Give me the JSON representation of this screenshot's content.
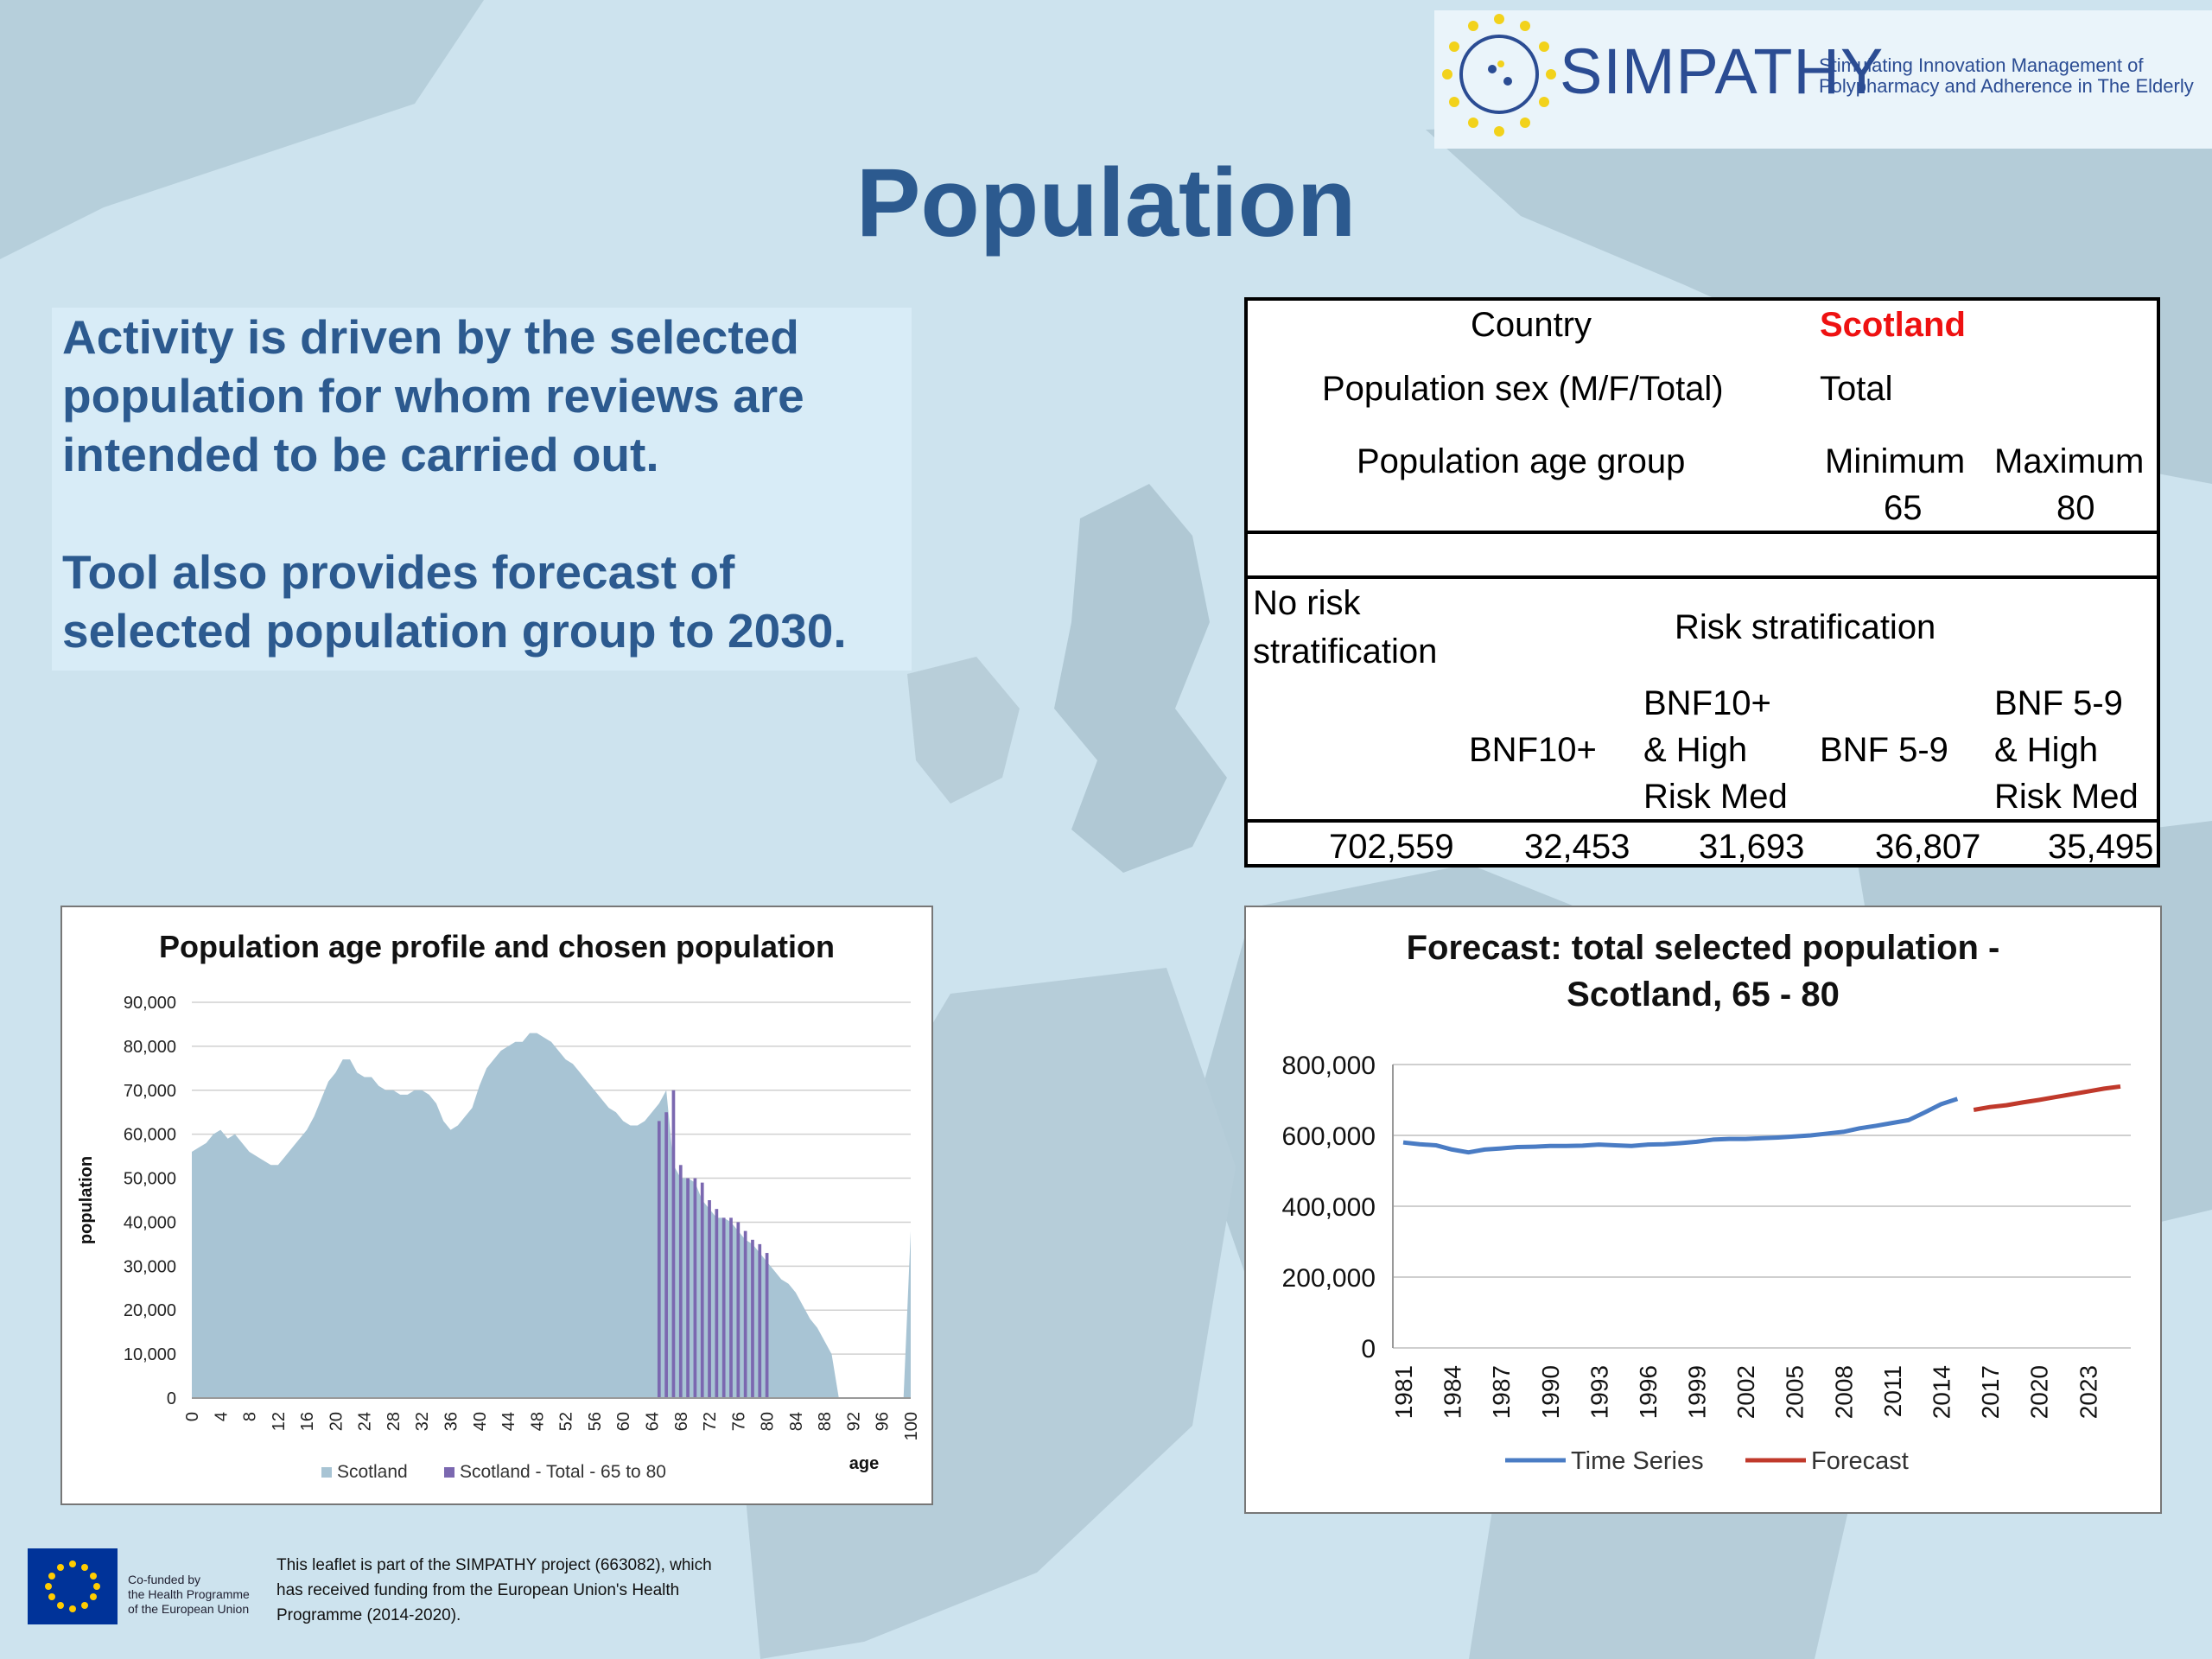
{
  "header": {
    "logo_name": "SIMPATHY",
    "logo_tagline": "Stimulating Innovation Management of Polypharmacy and Adherence in The Elderly"
  },
  "page_title": "Population",
  "intro": {
    "line1": "Activity is driven by the selected population for whom reviews are intended to be carried out.",
    "line2": "Tool also provides forecast of selected population group to 2030."
  },
  "selection_table": {
    "country_label": "Country",
    "country_value": "Scotland",
    "country_value_color": "#ee1111",
    "sex_label": "Population sex (M/F/Total)",
    "sex_value": "Total",
    "age_label": "Population age group",
    "min_label": "Minimum",
    "max_label": "Maximum",
    "min_value": "65",
    "max_value": "80",
    "no_risk_label_1": "No risk",
    "no_risk_label_2": "stratification",
    "risk_label": "Risk stratification",
    "col_bnf10": "BNF10+",
    "col_bnf10_high_1": "BNF10+",
    "col_bnf10_high_2": "& High",
    "col_bnf10_high_3": "Risk Med",
    "col_bnf59": "BNF 5-9",
    "col_bnf59_high_1": "BNF 5-9",
    "col_bnf59_high_2": "& High",
    "col_bnf59_high_3": "Risk Med",
    "values": [
      "702,559",
      "32,453",
      "31,693",
      "36,807",
      "35,495"
    ]
  },
  "chart_data": [
    {
      "type": "area",
      "title": "Population age profile and chosen population",
      "xlabel": "age",
      "ylabel": "population",
      "ylim": [
        0,
        90000
      ],
      "yticks": [
        "0",
        "10,000",
        "20,000",
        "30,000",
        "40,000",
        "50,000",
        "60,000",
        "70,000",
        "80,000",
        "90,000"
      ],
      "xticks": [
        "0",
        "4",
        "8",
        "12",
        "16",
        "20",
        "24",
        "28",
        "32",
        "36",
        "40",
        "44",
        "48",
        "52",
        "56",
        "60",
        "64",
        "68",
        "72",
        "76",
        "80",
        "84",
        "88",
        "92",
        "96",
        "100"
      ],
      "grid": true,
      "legend_position": "bottom",
      "series": [
        {
          "name": "Scotland",
          "color": "#a8c4d4",
          "x": [
            0,
            1,
            2,
            3,
            4,
            5,
            6,
            7,
            8,
            9,
            10,
            11,
            12,
            13,
            14,
            15,
            16,
            17,
            18,
            19,
            20,
            21,
            22,
            23,
            24,
            25,
            26,
            27,
            28,
            29,
            30,
            31,
            32,
            33,
            34,
            35,
            36,
            37,
            38,
            39,
            40,
            41,
            42,
            43,
            44,
            45,
            46,
            47,
            48,
            49,
            50,
            51,
            52,
            53,
            54,
            55,
            56,
            57,
            58,
            59,
            60,
            61,
            62,
            63,
            64,
            65,
            66,
            67,
            68,
            69,
            70,
            71,
            72,
            73,
            74,
            75,
            76,
            77,
            78,
            79,
            80,
            81,
            82,
            83,
            84,
            85,
            86,
            87,
            88,
            89,
            90,
            99,
            100
          ],
          "values": [
            56000,
            57000,
            58000,
            60000,
            61000,
            59000,
            60000,
            58000,
            56000,
            55000,
            54000,
            53000,
            53000,
            55000,
            57000,
            59000,
            61000,
            64000,
            68000,
            72000,
            74000,
            77000,
            77000,
            74000,
            73000,
            73000,
            71000,
            70000,
            70000,
            69000,
            69000,
            70000,
            70000,
            69000,
            67000,
            63000,
            61000,
            62000,
            64000,
            66000,
            71000,
            75000,
            77000,
            79000,
            80000,
            81000,
            81000,
            83000,
            83000,
            82000,
            81000,
            79000,
            77000,
            76000,
            74000,
            72000,
            70000,
            68000,
            66000,
            65000,
            63000,
            62000,
            62000,
            63000,
            65000,
            67000,
            70000,
            53000,
            50000,
            50000,
            49000,
            45000,
            43000,
            41000,
            41000,
            40000,
            38000,
            36000,
            35000,
            33000,
            31000,
            29000,
            27000,
            26000,
            24000,
            21000,
            18000,
            16000,
            13000,
            10000,
            0,
            0,
            38000
          ]
        },
        {
          "name": "Scotland - Total - 65 to 80",
          "color": "#7b68b0",
          "x": [
            65,
            66,
            67,
            68,
            69,
            70,
            71,
            72,
            73,
            74,
            75,
            76,
            77,
            78,
            79,
            80
          ],
          "values": [
            63000,
            65000,
            70000,
            53000,
            50000,
            50000,
            49000,
            45000,
            43000,
            41000,
            41000,
            40000,
            38000,
            36000,
            35000,
            33000
          ]
        }
      ]
    },
    {
      "type": "line",
      "title": "Forecast: total selected population - Scotland, 65 - 80",
      "ylim": [
        0,
        800000
      ],
      "yticks": [
        "0",
        "200,000",
        "400,000",
        "600,000",
        "800,000"
      ],
      "xticks": [
        "1981",
        "1984",
        "1987",
        "1990",
        "1993",
        "1996",
        "1999",
        "2002",
        "2005",
        "2008",
        "2011",
        "2014",
        "2017",
        "2020",
        "2023"
      ],
      "grid": true,
      "legend_position": "bottom",
      "series": [
        {
          "name": "Time Series",
          "color": "#4a7cc4",
          "x": [
            1981,
            1982,
            1983,
            1984,
            1985,
            1986,
            1987,
            1988,
            1989,
            1990,
            1991,
            1992,
            1993,
            1994,
            1995,
            1996,
            1997,
            1998,
            1999,
            2000,
            2001,
            2002,
            2003,
            2004,
            2005,
            2006,
            2007,
            2008,
            2009,
            2010,
            2011,
            2012,
            2013,
            2014,
            2015
          ],
          "values": [
            580000,
            575000,
            572000,
            560000,
            552000,
            560000,
            563000,
            567000,
            568000,
            570000,
            570000,
            571000,
            574000,
            572000,
            570000,
            574000,
            575000,
            578000,
            582000,
            588000,
            590000,
            590000,
            592000,
            594000,
            597000,
            600000,
            605000,
            610000,
            620000,
            627000,
            635000,
            643000,
            665000,
            688000,
            703000
          ]
        },
        {
          "name": "Forecast",
          "color": "#c0392b",
          "x": [
            2016,
            2017,
            2018,
            2019,
            2020,
            2021,
            2022,
            2023,
            2024,
            2025
          ],
          "values": [
            672000,
            680000,
            685000,
            693000,
            700000,
            708000,
            716000,
            724000,
            732000,
            738000
          ]
        }
      ]
    }
  ],
  "footer": {
    "eu_line1": "Co-funded by",
    "eu_line2": "the Health Programme",
    "eu_line3": "of the European Union",
    "note": "This leaflet is part of the SIMPATHY project (663082), which has received funding from the European Union's Health Programme (2014-2020)."
  }
}
